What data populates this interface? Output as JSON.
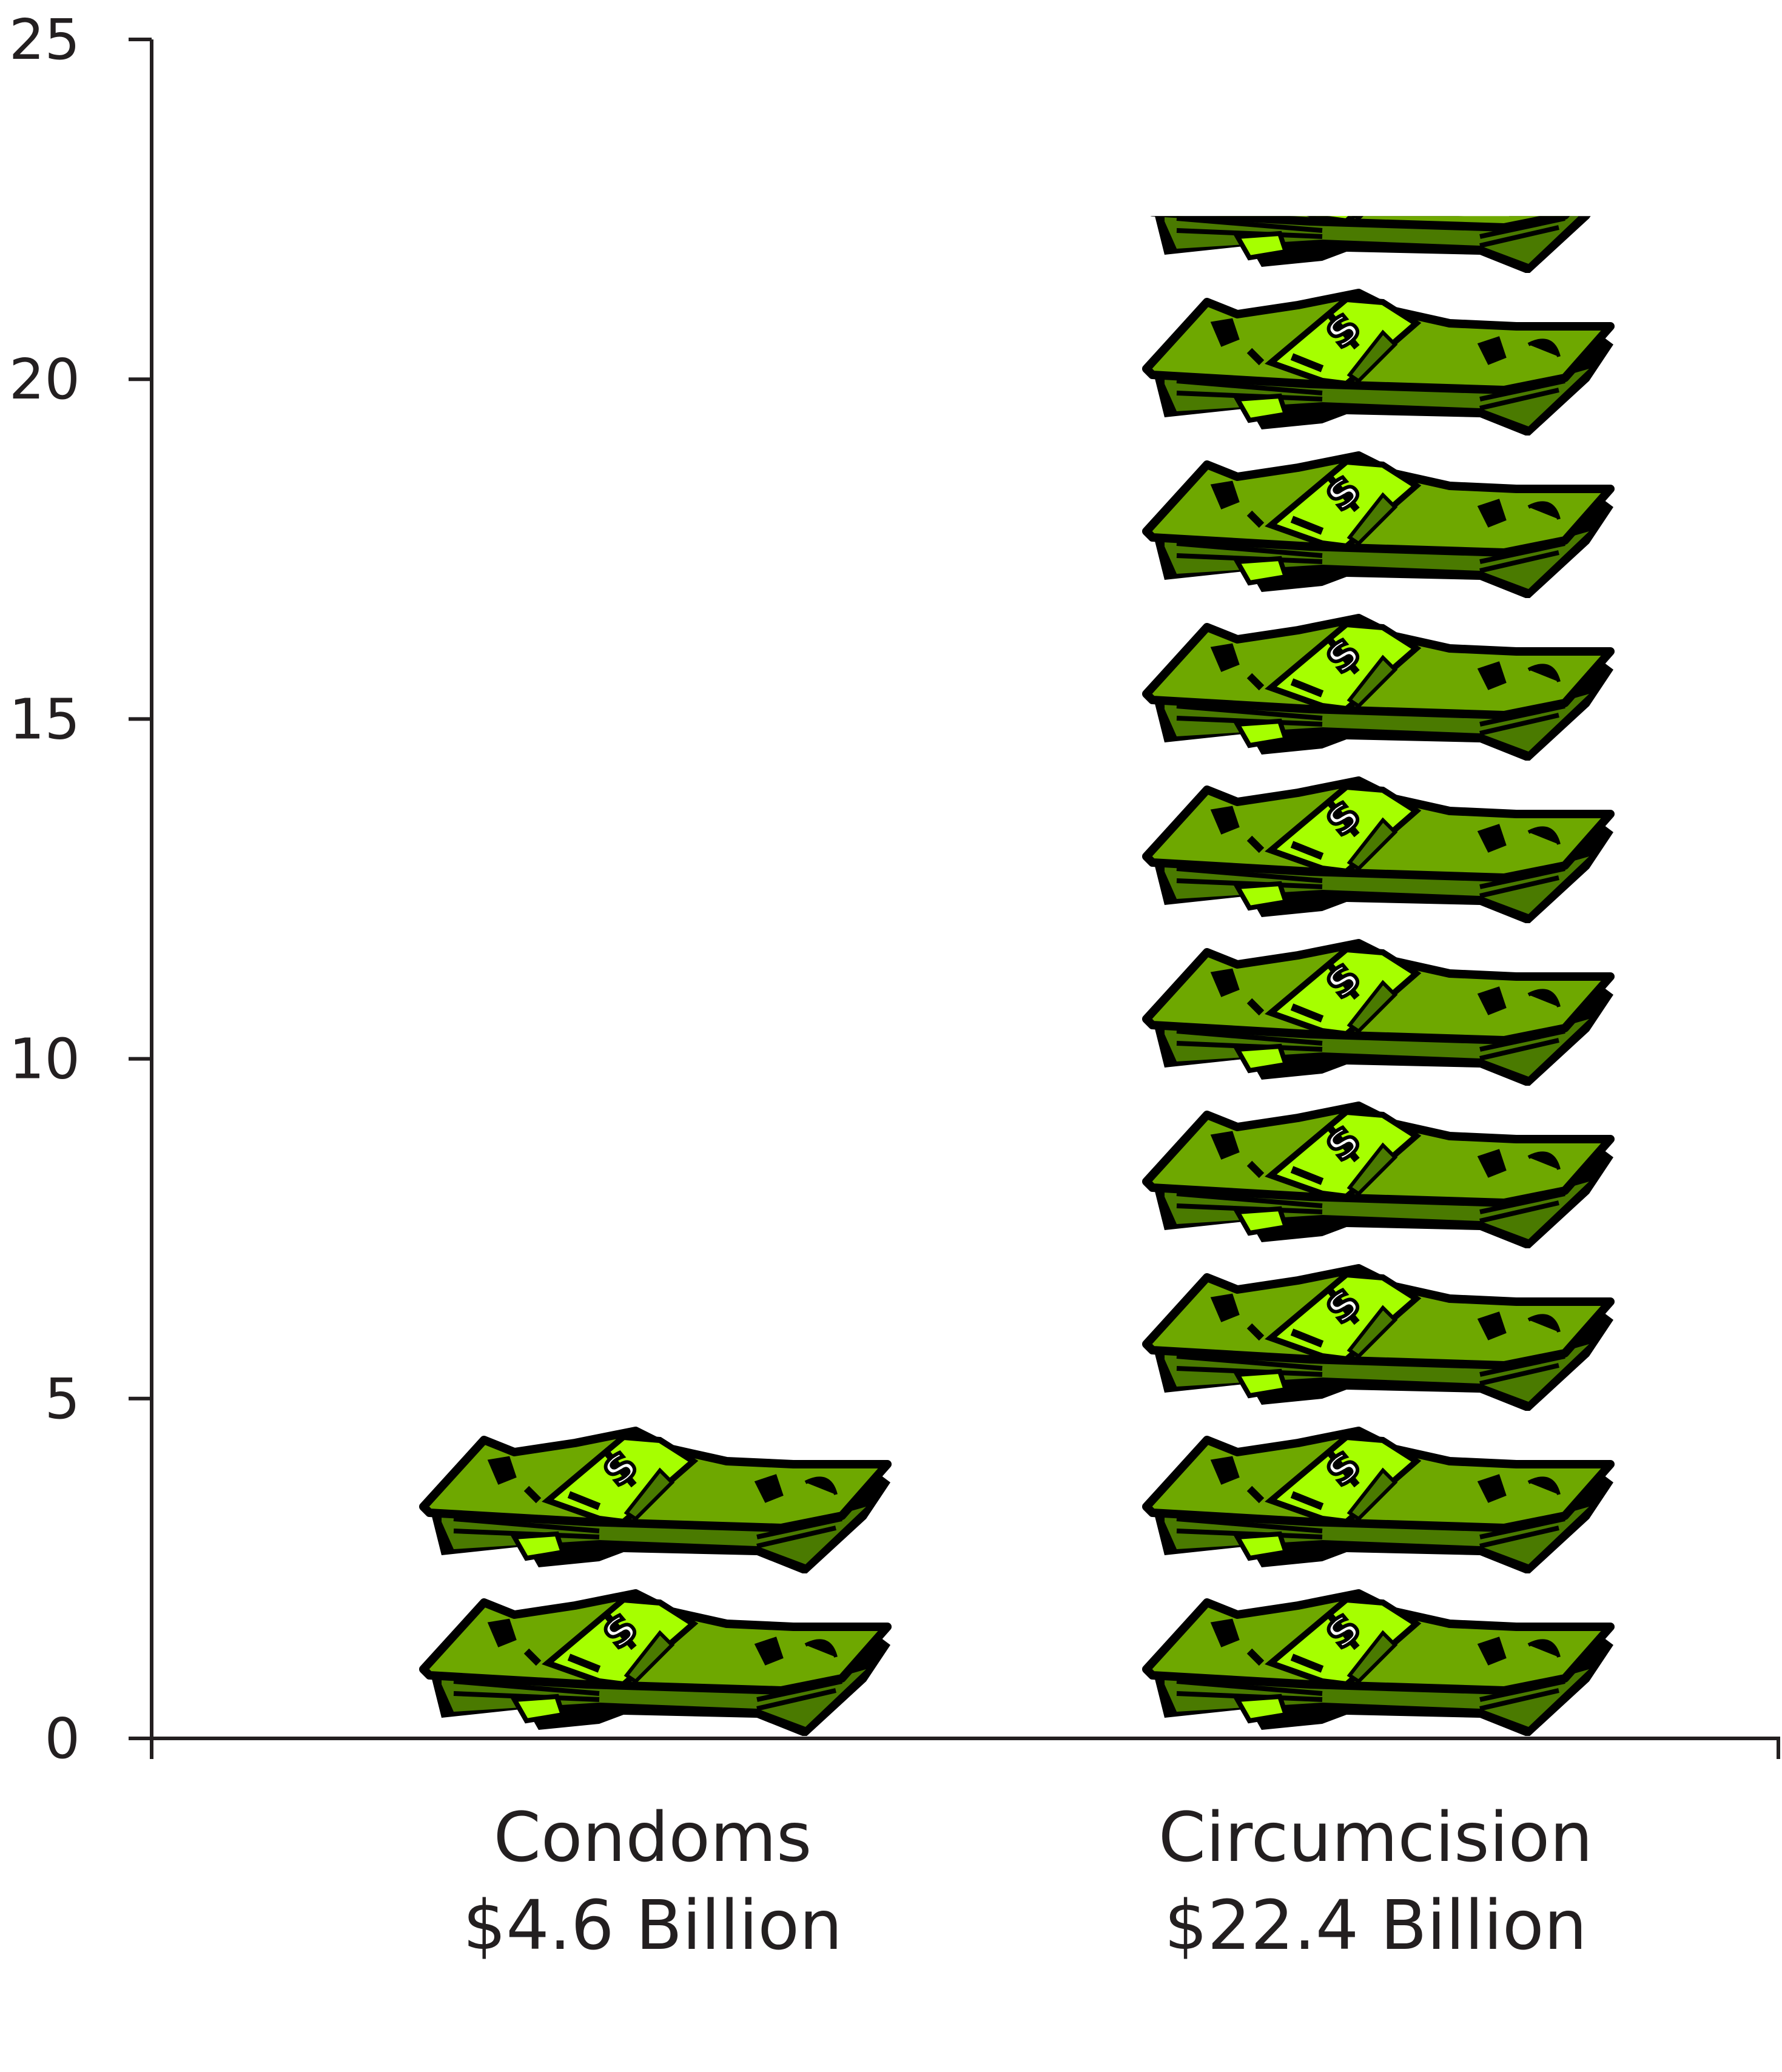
{
  "chart_data": {
    "type": "bar",
    "title": "",
    "xlabel": "",
    "ylabel": "",
    "ylim": [
      0,
      25
    ],
    "yticks": [
      "0",
      "5",
      "10",
      "15",
      "20",
      "25"
    ],
    "categories": [
      "Condoms",
      "Circumcision"
    ],
    "value_labels": [
      "$4.6 Billion",
      "$22.4 Billion"
    ],
    "values": [
      4.6,
      22.4
    ],
    "units": "Billion USD",
    "bar_style": "stacks of money pictograph",
    "grid": false,
    "colors": {
      "axis": "#231f20",
      "bill": "#6ea800",
      "bill_bright": "#a6ff00",
      "bill_dark": "#4a7a00",
      "outline": "#000000"
    }
  }
}
